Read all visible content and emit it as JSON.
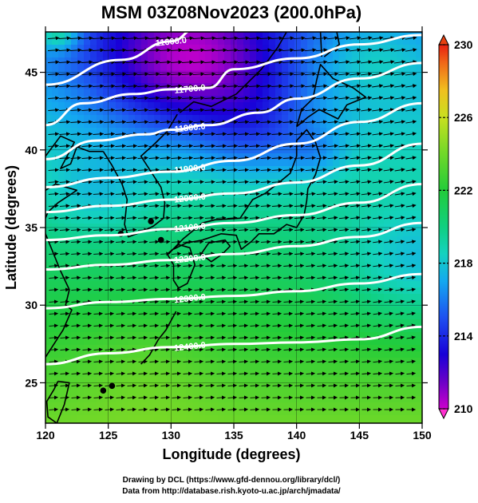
{
  "title": "MSM 03Z08Nov2023 (200.0hPa)",
  "x_axis": {
    "label": "Longitude (degrees)",
    "range": [
      120,
      150
    ],
    "ticks": [
      {
        "value": 120,
        "label": "120"
      },
      {
        "value": 125,
        "label": "125"
      },
      {
        "value": 130,
        "label": "130"
      },
      {
        "value": 135,
        "label": "135"
      },
      {
        "value": 140,
        "label": "140"
      },
      {
        "value": 145,
        "label": "145"
      },
      {
        "value": 150,
        "label": "150"
      }
    ]
  },
  "y_axis": {
    "label": "Latitude  (degrees)",
    "range": [
      22.4,
      47.6
    ],
    "ticks": [
      {
        "value": 25,
        "label": "25"
      },
      {
        "value": 30,
        "label": "30"
      },
      {
        "value": 35,
        "label": "35"
      },
      {
        "value": 40,
        "label": "40"
      },
      {
        "value": 45,
        "label": "45"
      }
    ]
  },
  "colorbar": {
    "range": [
      210,
      230
    ],
    "ticks": [
      {
        "value": 210,
        "label": "210"
      },
      {
        "value": 214,
        "label": "214"
      },
      {
        "value": 218,
        "label": "218"
      },
      {
        "value": 222,
        "label": "222"
      },
      {
        "value": 226,
        "label": "226"
      },
      {
        "value": 230,
        "label": "230"
      }
    ],
    "stops": [
      {
        "value": 210,
        "color": "#cc00cc"
      },
      {
        "value": 211.5,
        "color": "#6a00c8"
      },
      {
        "value": 213,
        "color": "#1800d8"
      },
      {
        "value": 215,
        "color": "#1e50f0"
      },
      {
        "value": 217,
        "color": "#14a8f0"
      },
      {
        "value": 218.5,
        "color": "#14d2c0"
      },
      {
        "value": 220,
        "color": "#10d080"
      },
      {
        "value": 222,
        "color": "#22cc3a"
      },
      {
        "value": 224,
        "color": "#70d828"
      },
      {
        "value": 226,
        "color": "#c8e020"
      },
      {
        "value": 227.5,
        "color": "#f0c020"
      },
      {
        "value": 229,
        "color": "#f06818"
      },
      {
        "value": 230,
        "color": "#e82010"
      }
    ]
  },
  "contours": [
    {
      "label": "11600.0",
      "points": [
        [
          120,
          44.2
        ],
        [
          126,
          45.8
        ],
        [
          130,
          47.0
        ],
        [
          132,
          47.8
        ]
      ]
    },
    {
      "label": "11700.0",
      "points": [
        [
          120,
          41.6
        ],
        [
          123,
          43.0
        ],
        [
          127,
          43.6
        ],
        [
          130,
          43.9
        ],
        [
          133,
          44.0
        ],
        [
          135,
          45.2
        ],
        [
          140,
          45.9
        ],
        [
          145,
          46.8
        ],
        [
          150,
          47.4
        ]
      ]
    },
    {
      "label": "11800.0",
      "points": [
        [
          120,
          39.4
        ],
        [
          124,
          40.6
        ],
        [
          128,
          41.0
        ],
        [
          130,
          41.3
        ],
        [
          133,
          41.6
        ],
        [
          137,
          42.4
        ],
        [
          140,
          43.3
        ],
        [
          145,
          44.6
        ],
        [
          150,
          45.6
        ]
      ]
    },
    {
      "label": "11900.0",
      "points": [
        [
          120,
          37.6
        ],
        [
          125,
          38.2
        ],
        [
          130,
          38.6
        ],
        [
          135,
          39.3
        ],
        [
          140,
          40.4
        ],
        [
          145,
          41.8
        ],
        [
          150,
          43.0
        ]
      ]
    },
    {
      "label": "12000.0",
      "points": [
        [
          120,
          36.0
        ],
        [
          125,
          36.4
        ],
        [
          130,
          36.8
        ],
        [
          135,
          37.2
        ],
        [
          140,
          37.9
        ],
        [
          145,
          39.0
        ],
        [
          150,
          40.4
        ]
      ]
    },
    {
      "label": "12100.0",
      "points": [
        [
          120,
          34.2
        ],
        [
          125,
          34.5
        ],
        [
          130,
          34.9
        ],
        [
          135,
          35.3
        ],
        [
          140,
          35.8
        ],
        [
          145,
          36.6
        ],
        [
          150,
          37.8
        ]
      ]
    },
    {
      "label": "12200.0",
      "points": [
        [
          120,
          32.3
        ],
        [
          125,
          32.6
        ],
        [
          130,
          32.9
        ],
        [
          135,
          33.3
        ],
        [
          140,
          33.8
        ],
        [
          145,
          34.4
        ],
        [
          150,
          35.3
        ]
      ]
    },
    {
      "label": "12300.0",
      "points": [
        [
          120,
          29.8
        ],
        [
          125,
          30.2
        ],
        [
          130,
          30.4
        ],
        [
          135,
          30.6
        ],
        [
          140,
          30.9
        ],
        [
          145,
          31.4
        ],
        [
          150,
          32.0
        ]
      ]
    },
    {
      "label": "12400.0",
      "points": [
        [
          120,
          26.2
        ],
        [
          125,
          26.9
        ],
        [
          130,
          27.3
        ],
        [
          135,
          27.5
        ],
        [
          140,
          27.6
        ],
        [
          145,
          27.8
        ],
        [
          150,
          28.6
        ]
      ]
    }
  ],
  "credits": {
    "line1": "Drawing by DCL (https://www.gfd-dennou.org/library/dcl/)",
    "line2": "Data from http://database.rish.kyoto-u.ac.jp/arch/jmadata/"
  }
}
